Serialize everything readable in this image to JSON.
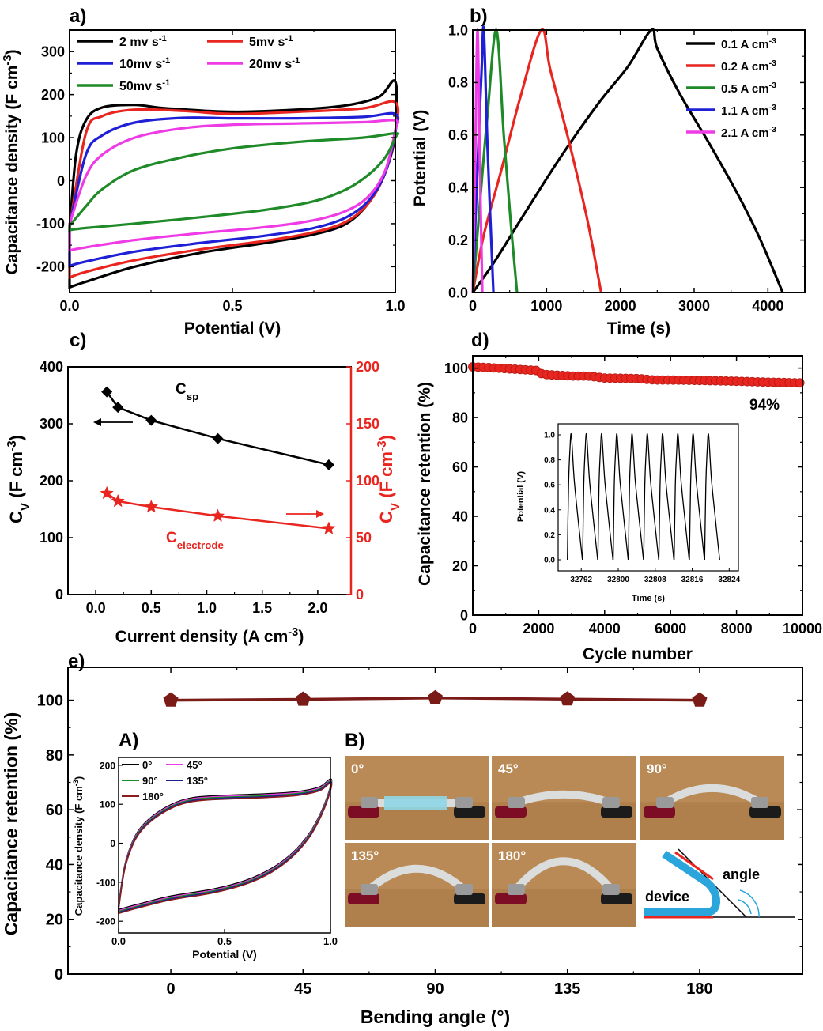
{
  "chart_data": [
    {
      "id": "a",
      "panel_label": "a)",
      "type": "line",
      "xlabel": "Potential (V)",
      "ylabel": "Capacitance density (F cm",
      "ylabel_sup": "-3",
      "ylabel_tail": ")",
      "xlim": [
        0,
        1.0
      ],
      "ylim": [
        -260,
        350
      ],
      "xticks": [
        0,
        0.5,
        1.0
      ],
      "xtick_labels": [
        "0.0",
        "0.5",
        "1.0"
      ],
      "yticks": [
        -200,
        -100,
        0,
        100,
        200,
        300
      ],
      "legend": "top-left",
      "series": [
        {
          "name": "2 mv s",
          "sup": "-1",
          "color": "#000000",
          "upper": [
            [
              0.0,
              -115
            ],
            [
              0.02,
              60
            ],
            [
              0.05,
              140
            ],
            [
              0.1,
              170
            ],
            [
              0.2,
              176
            ],
            [
              0.3,
              168
            ],
            [
              0.5,
              160
            ],
            [
              0.7,
              165
            ],
            [
              0.85,
              175
            ],
            [
              0.95,
              195
            ],
            [
              1.0,
              230
            ]
          ],
          "lower": [
            [
              0.0,
              -248
            ],
            [
              0.05,
              -235
            ],
            [
              0.2,
              -200
            ],
            [
              0.4,
              -168
            ],
            [
              0.6,
              -145
            ],
            [
              0.75,
              -125
            ],
            [
              0.85,
              -100
            ],
            [
              0.92,
              -50
            ],
            [
              0.97,
              20
            ],
            [
              1.0,
              110
            ]
          ]
        },
        {
          "name": "5mv s",
          "sup": "-1",
          "color": "#e8251f",
          "upper": [
            [
              0.0,
              -110
            ],
            [
              0.05,
              110
            ],
            [
              0.1,
              150
            ],
            [
              0.2,
              165
            ],
            [
              0.35,
              162
            ],
            [
              0.5,
              155
            ],
            [
              0.7,
              160
            ],
            [
              0.9,
              168
            ],
            [
              1.0,
              182
            ]
          ],
          "lower": [
            [
              0.0,
              -225
            ],
            [
              0.05,
              -212
            ],
            [
              0.2,
              -185
            ],
            [
              0.4,
              -160
            ],
            [
              0.6,
              -140
            ],
            [
              0.75,
              -120
            ],
            [
              0.85,
              -95
            ],
            [
              0.92,
              -50
            ],
            [
              0.97,
              20
            ],
            [
              1.0,
              115
            ]
          ]
        },
        {
          "name": "10mv s",
          "sup": "-1",
          "color": "#1f1fd6",
          "upper": [
            [
              0.0,
              -105
            ],
            [
              0.05,
              60
            ],
            [
              0.1,
              105
            ],
            [
              0.2,
              135
            ],
            [
              0.35,
              146
            ],
            [
              0.5,
              145
            ],
            [
              0.7,
              145
            ],
            [
              0.9,
              148
            ],
            [
              1.0,
              155
            ]
          ],
          "lower": [
            [
              0.0,
              -198
            ],
            [
              0.05,
              -188
            ],
            [
              0.2,
              -165
            ],
            [
              0.4,
              -145
            ],
            [
              0.6,
              -128
            ],
            [
              0.75,
              -110
            ],
            [
              0.85,
              -85
            ],
            [
              0.92,
              -45
            ],
            [
              0.97,
              20
            ],
            [
              1.0,
              115
            ]
          ]
        },
        {
          "name": "20mv s",
          "sup": "-1",
          "color": "#ee3be6",
          "upper": [
            [
              0.0,
              -100
            ],
            [
              0.05,
              10
            ],
            [
              0.1,
              60
            ],
            [
              0.2,
              100
            ],
            [
              0.35,
              122
            ],
            [
              0.5,
              130
            ],
            [
              0.7,
              133
            ],
            [
              0.9,
              136
            ],
            [
              1.0,
              140
            ]
          ],
          "lower": [
            [
              0.0,
              -162
            ],
            [
              0.05,
              -155
            ],
            [
              0.2,
              -138
            ],
            [
              0.4,
              -122
            ],
            [
              0.6,
              -108
            ],
            [
              0.75,
              -92
            ],
            [
              0.85,
              -70
            ],
            [
              0.92,
              -35
            ],
            [
              0.97,
              25
            ],
            [
              1.0,
              118
            ]
          ]
        },
        {
          "name": "50mv s",
          "sup": "-1",
          "color": "#1e8a28",
          "upper": [
            [
              0.0,
              -105
            ],
            [
              0.05,
              -60
            ],
            [
              0.1,
              -20
            ],
            [
              0.2,
              25
            ],
            [
              0.35,
              55
            ],
            [
              0.5,
              75
            ],
            [
              0.7,
              90
            ],
            [
              0.9,
              100
            ],
            [
              1.0,
              110
            ]
          ],
          "lower": [
            [
              0.0,
              -115
            ],
            [
              0.05,
              -110
            ],
            [
              0.2,
              -100
            ],
            [
              0.4,
              -85
            ],
            [
              0.6,
              -68
            ],
            [
              0.75,
              -48
            ],
            [
              0.85,
              -20
            ],
            [
              0.92,
              15
            ],
            [
              0.97,
              55
            ],
            [
              1.0,
              100
            ]
          ]
        }
      ]
    },
    {
      "id": "b",
      "panel_label": "b)",
      "type": "line",
      "xlabel": "Time (s)",
      "ylabel": "Potential (V)",
      "xlim": [
        0,
        4500
      ],
      "ylim": [
        0,
        1.0
      ],
      "xticks": [
        0,
        1000,
        2000,
        3000,
        4000
      ],
      "yticks": [
        0,
        0.2,
        0.4,
        0.6,
        0.8,
        1.0
      ],
      "ytick_labels": [
        "0.0",
        "0.2",
        "0.4",
        "0.6",
        "0.8",
        "1.0"
      ],
      "legend": "top-right",
      "series": [
        {
          "name": "0.1 A cm",
          "sup": "-3",
          "color": "#000000",
          "points": [
            [
              0,
              0
            ],
            [
              300,
              0.12
            ],
            [
              700,
              0.3
            ],
            [
              1200,
              0.52
            ],
            [
              1700,
              0.72
            ],
            [
              2100,
              0.86
            ],
            [
              2420,
              1.0
            ],
            [
              2500,
              0.93
            ],
            [
              2800,
              0.76
            ],
            [
              3200,
              0.57
            ],
            [
              3600,
              0.37
            ],
            [
              3900,
              0.2
            ],
            [
              4200,
              0.0
            ]
          ]
        },
        {
          "name": "0.2 A cm",
          "sup": "-3",
          "color": "#e8251f",
          "points": [
            [
              0,
              0
            ],
            [
              150,
              0.22
            ],
            [
              400,
              0.48
            ],
            [
              650,
              0.75
            ],
            [
              930,
              1.0
            ],
            [
              1050,
              0.85
            ],
            [
              1300,
              0.58
            ],
            [
              1550,
              0.28
            ],
            [
              1740,
              0.0
            ]
          ]
        },
        {
          "name": "0.5 A cm",
          "sup": "-3",
          "color": "#1e8a28",
          "points": [
            [
              0,
              0
            ],
            [
              100,
              0.35
            ],
            [
              200,
              0.68
            ],
            [
              320,
              1.0
            ],
            [
              420,
              0.6
            ],
            [
              520,
              0.25
            ],
            [
              600,
              0.0
            ]
          ]
        },
        {
          "name": "1.1 A cm",
          "sup": "-3",
          "color": "#1f1fd6",
          "points": [
            [
              0,
              0
            ],
            [
              60,
              0.45
            ],
            [
              120,
              0.85
            ],
            [
              150,
              1.0
            ],
            [
              200,
              0.55
            ],
            [
              280,
              0.0
            ]
          ]
        },
        {
          "name": "2.1 A cm",
          "sup": "-3",
          "color": "#ee3be6",
          "points": [
            [
              0,
              0
            ],
            [
              35,
              0.55
            ],
            [
              65,
              1.0
            ],
            [
              95,
              0.5
            ],
            [
              130,
              0.0
            ]
          ]
        }
      ]
    },
    {
      "id": "c",
      "panel_label": "c)",
      "type": "line",
      "xlabel": "Current density (A cm",
      "xlabel_sup": "-3",
      "xlabel_tail": ")",
      "ylabel_left": "C",
      "ylabel_left_sub": "V",
      "ylabel_left_tail": " (F cm",
      "ylabel_left_sup": "-3",
      "ylabel_left_end": ")",
      "ylabel_right": "C",
      "ylabel_right_sub": "V",
      "ylabel_right_tail": " (F cm",
      "ylabel_right_sup": "-3",
      "ylabel_right_end": ")",
      "xlim": [
        -0.25,
        2.3
      ],
      "ylim_left": [
        0,
        400
      ],
      "ylim_right": [
        0,
        200
      ],
      "xticks": [
        0.0,
        0.5,
        1.0,
        1.5,
        2.0
      ],
      "xtick_labels": [
        "0.0",
        "0.5",
        "1.0",
        "1.5",
        "2.0"
      ],
      "yticks_left": [
        0,
        100,
        200,
        300,
        400
      ],
      "yticks_right": [
        0,
        50,
        100,
        150,
        200
      ],
      "categories": [
        0.1,
        0.2,
        0.5,
        1.1,
        2.1
      ],
      "series": [
        {
          "name": "C",
          "sub": "sp",
          "axis": "left",
          "marker": "diamond",
          "color": "#000000",
          "values": [
            356,
            329,
            306,
            274,
            228
          ]
        },
        {
          "name": "C",
          "sub": "electrode",
          "axis": "right",
          "marker": "star",
          "color": "#e8251f",
          "values": [
            89,
            82,
            77,
            69,
            58
          ]
        }
      ]
    },
    {
      "id": "d",
      "panel_label": "d)",
      "type": "scatter",
      "xlabel": "Cycle number",
      "ylabel": "Capacitance retention (%)",
      "xlim": [
        0,
        10000
      ],
      "ylim": [
        0,
        105
      ],
      "xticks": [
        0,
        2000,
        4000,
        6000,
        8000,
        10000
      ],
      "yticks": [
        0,
        20,
        40,
        60,
        80,
        100
      ],
      "annotation": "94%",
      "retention": [
        [
          0,
          100.5
        ],
        [
          500,
          100.2
        ],
        [
          1000,
          99.8
        ],
        [
          1500,
          99.4
        ],
        [
          2000,
          99.0
        ],
        [
          2100,
          97.5
        ],
        [
          3000,
          96.8
        ],
        [
          3500,
          96.8
        ],
        [
          4000,
          96.0
        ],
        [
          5000,
          95.8
        ],
        [
          5500,
          95.2
        ],
        [
          6000,
          95.2
        ],
        [
          7000,
          95.0
        ],
        [
          8000,
          94.7
        ],
        [
          9000,
          94.3
        ],
        [
          10000,
          94.0
        ]
      ],
      "inset": {
        "xlabel": "Time (s)",
        "ylabel": "Potential (V)",
        "xlim": [
          32787,
          32826
        ],
        "ylim": [
          0,
          1.0
        ],
        "xticks": [
          32792,
          32800,
          32808,
          32816,
          32824
        ],
        "yticks": [
          0.0,
          0.2,
          0.4,
          0.6,
          0.8,
          1.0
        ],
        "ytick_labels": [
          "0.0",
          "0.2",
          "0.4",
          "0.6",
          "0.8",
          "1.0"
        ],
        "cycles": 10,
        "cycle_start": 32789,
        "cycle_period": 3.3,
        "charge_time": 0.85
      }
    },
    {
      "id": "e",
      "panel_label": "e)",
      "type": "line",
      "xlabel": "Bending angle (°)",
      "ylabel": "Capacitance retention (%)",
      "xlim": [
        -35,
        215
      ],
      "ylim": [
        0,
        112
      ],
      "xticks": [
        0,
        45,
        90,
        135,
        180
      ],
      "yticks": [
        0,
        20,
        40,
        60,
        80,
        100
      ],
      "categories": [
        0,
        45,
        90,
        135,
        180
      ],
      "values": [
        100,
        100.3,
        100.8,
        100.4,
        100
      ],
      "color": "#7a1b18",
      "inset_A": {
        "panel_label": "A)",
        "xlabel": "Potential (V)",
        "ylabel": "Capacitance density (F cm",
        "ylabel_sup": "-3",
        "ylabel_tail": ")",
        "xlim": [
          0,
          1.0
        ],
        "ylim": [
          -230,
          220
        ],
        "xticks": [
          0,
          0.5,
          1.0
        ],
        "xtick_labels": [
          "0.0",
          "0.5",
          "1.0"
        ],
        "yticks": [
          -200,
          -100,
          0,
          100,
          200
        ],
        "series": [
          {
            "name": "0°",
            "color": "#000000"
          },
          {
            "name": "45°",
            "color": "#ee3be6"
          },
          {
            "name": "90°",
            "color": "#1e8a28"
          },
          {
            "name": "135°",
            "color": "#1f1f8a"
          },
          {
            "name": "180°",
            "color": "#8b1c1c"
          }
        ],
        "upper": [
          [
            0.0,
            -165
          ],
          [
            0.03,
            -60
          ],
          [
            0.08,
            15
          ],
          [
            0.15,
            60
          ],
          [
            0.25,
            95
          ],
          [
            0.35,
            112
          ],
          [
            0.5,
            118
          ],
          [
            0.7,
            122
          ],
          [
            0.85,
            128
          ],
          [
            0.95,
            140
          ],
          [
            1.0,
            160
          ]
        ],
        "lower": [
          [
            0.0,
            -175
          ],
          [
            0.1,
            -160
          ],
          [
            0.25,
            -140
          ],
          [
            0.45,
            -122
          ],
          [
            0.6,
            -100
          ],
          [
            0.72,
            -70
          ],
          [
            0.82,
            -30
          ],
          [
            0.9,
            20
          ],
          [
            0.96,
            80
          ],
          [
            1.0,
            140
          ]
        ]
      },
      "inset_B": {
        "panel_label": "B)",
        "photo_labels": [
          "0°",
          "45°",
          "90°",
          "135°",
          "180°"
        ],
        "diagram_labels": {
          "device": "device",
          "angle": "angle"
        }
      }
    }
  ]
}
